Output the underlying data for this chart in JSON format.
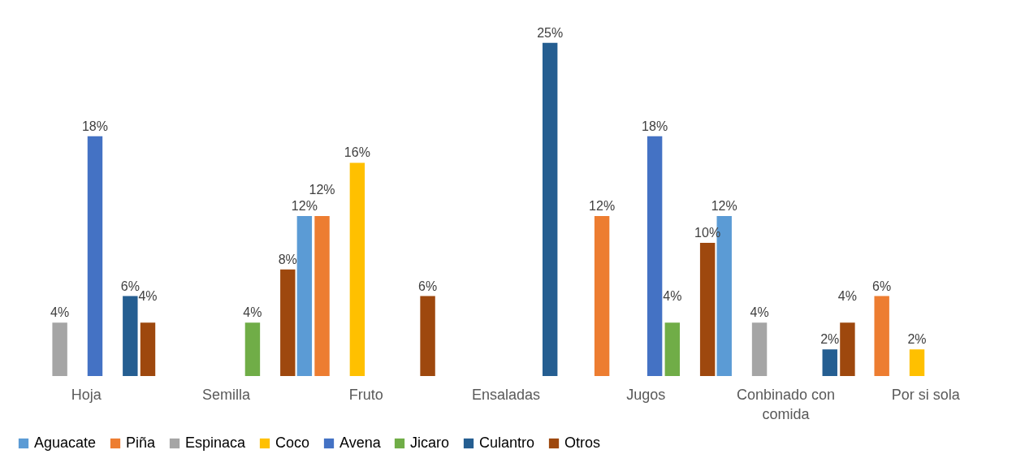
{
  "chart_data": {
    "type": "bar",
    "legend": "bottom",
    "categories": [
      "Hoja",
      "Semilla",
      "Fruto",
      "Ensaladas",
      "Jugos",
      "Conbinado con comida",
      "Por si sola"
    ],
    "series": [
      {
        "name": "Aguacate",
        "color": "#5b9bd5",
        "values": [
          null,
          null,
          12,
          null,
          null,
          12,
          null
        ],
        "value_labels": [
          null,
          null,
          "12%",
          null,
          null,
          "12%",
          null
        ]
      },
      {
        "name": "Piña",
        "color": "#ed7d31",
        "values": [
          null,
          null,
          12,
          null,
          12,
          null,
          6
        ],
        "value_labels": [
          null,
          null,
          "12%",
          null,
          "12%",
          null,
          "6%"
        ]
      },
      {
        "name": "Espinaca",
        "color": "#a5a5a5",
        "values": [
          4,
          null,
          null,
          null,
          null,
          4,
          null
        ],
        "value_labels": [
          "4%",
          null,
          null,
          null,
          null,
          "4%",
          null
        ]
      },
      {
        "name": "Coco",
        "color": "#ffc000",
        "values": [
          null,
          null,
          16,
          null,
          null,
          null,
          2
        ],
        "value_labels": [
          null,
          null,
          "16%",
          null,
          null,
          null,
          "2%"
        ]
      },
      {
        "name": "Avena",
        "color": "#4472c4",
        "values": [
          18,
          null,
          null,
          null,
          18,
          null,
          null
        ],
        "value_labels": [
          "18%",
          null,
          null,
          null,
          "18%",
          null,
          null
        ]
      },
      {
        "name": "Jicaro",
        "color": "#70ad47",
        "values": [
          null,
          4,
          null,
          null,
          4,
          null,
          null
        ],
        "value_labels": [
          null,
          "4%",
          null,
          null,
          "4%",
          null,
          null
        ]
      },
      {
        "name": "Culantro",
        "color": "#255e91",
        "values": [
          6,
          null,
          null,
          25,
          null,
          2,
          null
        ],
        "value_labels": [
          "6%",
          null,
          null,
          "25%",
          null,
          "2%",
          null
        ]
      },
      {
        "name": "Otros",
        "color": "#9e480e",
        "values": [
          4,
          8,
          6,
          null,
          10,
          4,
          null
        ],
        "value_labels": [
          "4%",
          "8%",
          "6%",
          null,
          "10%",
          "4%",
          null
        ]
      }
    ]
  }
}
